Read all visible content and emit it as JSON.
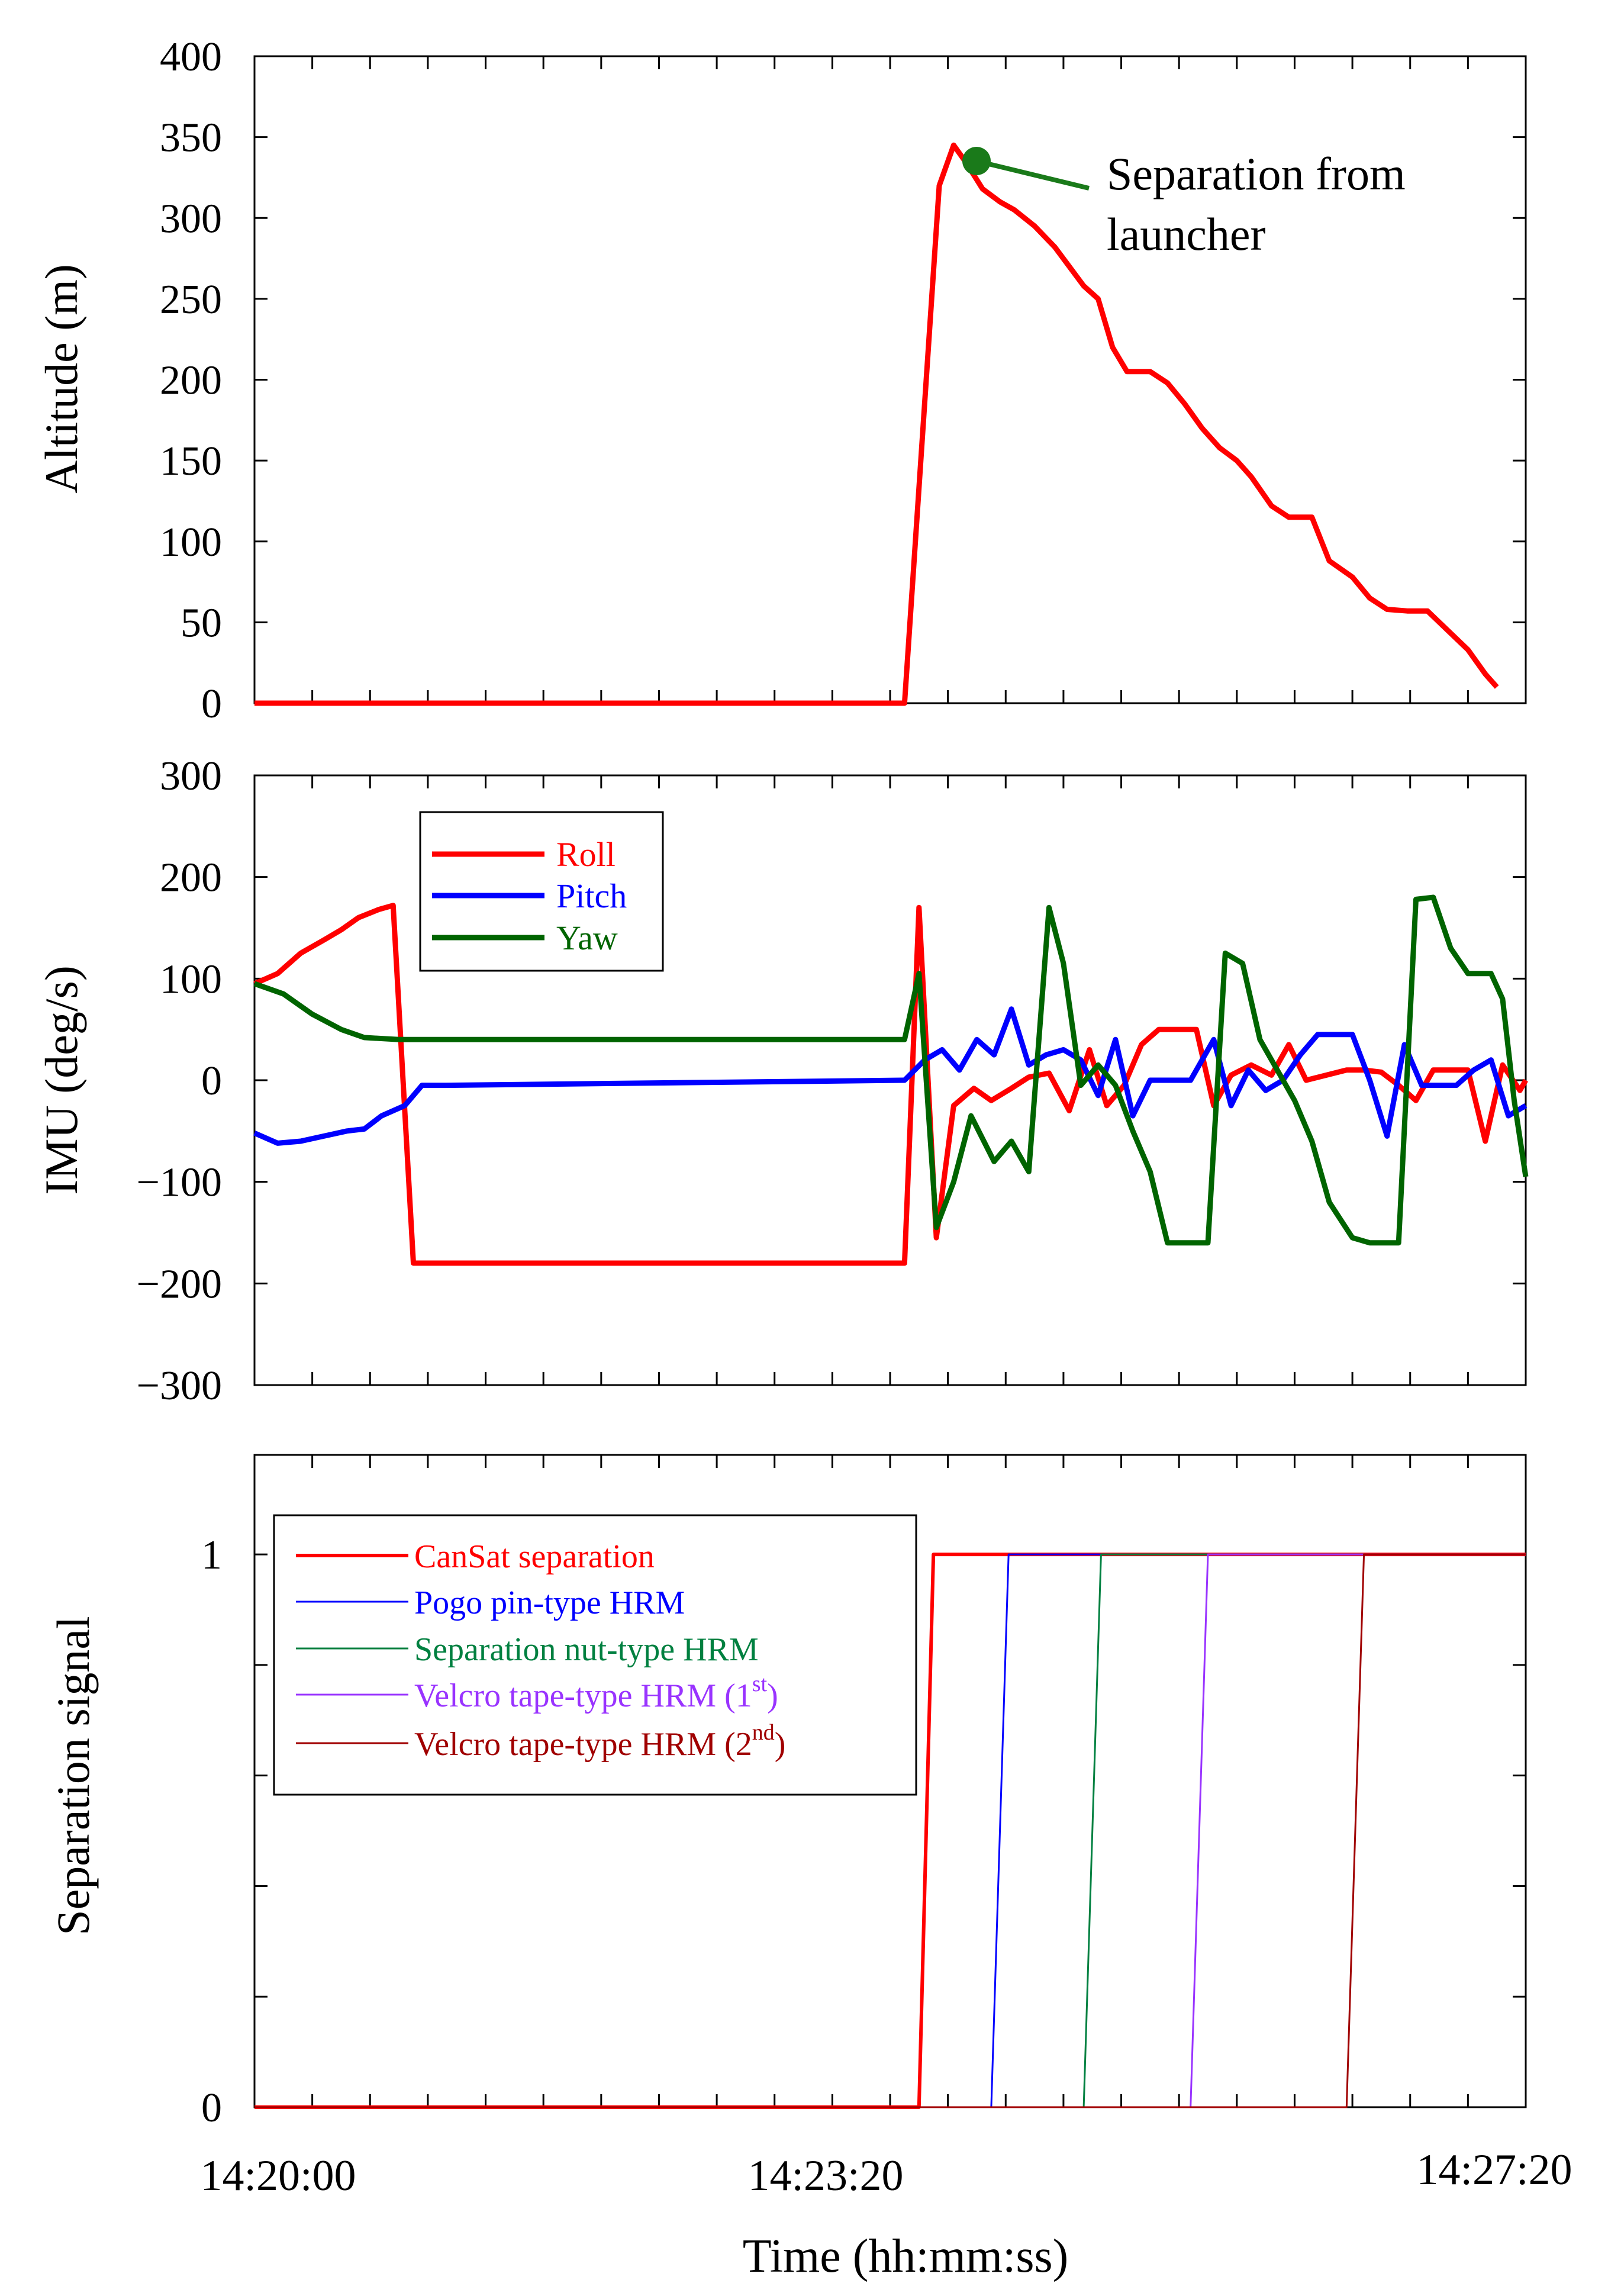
{
  "colors": {
    "roll": "#ff0000",
    "pitch": "#0000ff",
    "yaw": "#006400",
    "cansat": "#ff0000",
    "pogo": "#0000ff",
    "nut": "#008040",
    "velcro1": "#9933ff",
    "velcro2": "#a00000",
    "annotation": "#1a7a1a",
    "axis": "#000000"
  },
  "xaxis": {
    "label": "Time (hh:mm:ss)",
    "ticks": [
      {
        "t": 0,
        "label": "14:20:00"
      },
      {
        "t": 200,
        "label": "14:23:20"
      },
      {
        "t": 440,
        "label": "14:27:20"
      }
    ]
  },
  "chart_data": [
    {
      "id": "altitude",
      "type": "line",
      "ylabel": "Altitude (m)",
      "ylim": [
        0,
        400
      ],
      "yticks": [
        0,
        50,
        100,
        150,
        200,
        250,
        300,
        350,
        400
      ],
      "xlim": [
        0,
        440
      ],
      "annotation": {
        "lines": [
          "Separation from",
          "launcher"
        ],
        "point": {
          "t": 250,
          "value": 335
        }
      },
      "series": [
        {
          "name": "Altitude",
          "color_key": "roll",
          "points": [
            [
              0,
              0
            ],
            [
              225,
              0
            ],
            [
              237,
              320
            ],
            [
              242,
              345
            ],
            [
              246,
              335
            ],
            [
              252,
              318
            ],
            [
              258,
              310
            ],
            [
              263,
              305
            ],
            [
              270,
              295
            ],
            [
              277,
              282
            ],
            [
              282,
              270
            ],
            [
              287,
              258
            ],
            [
              292,
              250
            ],
            [
              297,
              220
            ],
            [
              302,
              205
            ],
            [
              310,
              205
            ],
            [
              316,
              198
            ],
            [
              322,
              185
            ],
            [
              328,
              170
            ],
            [
              334,
              158
            ],
            [
              340,
              150
            ],
            [
              345,
              140
            ],
            [
              352,
              122
            ],
            [
              358,
              115
            ],
            [
              366,
              115
            ],
            [
              372,
              88
            ],
            [
              380,
              78
            ],
            [
              386,
              65
            ],
            [
              392,
              58
            ],
            [
              399,
              57
            ],
            [
              406,
              57
            ],
            [
              413,
              45
            ],
            [
              420,
              33
            ],
            [
              426,
              18
            ],
            [
              430,
              10
            ]
          ]
        }
      ]
    },
    {
      "id": "imu",
      "type": "line",
      "ylabel": "IMU (deg/s)",
      "ylim": [
        -300,
        300
      ],
      "yticks": [
        -300,
        -200,
        -100,
        0,
        100,
        200,
        300
      ],
      "ytick_labels": [
        "−300",
        "−200",
        "−100",
        "0",
        "100",
        "200",
        "300"
      ],
      "xlim": [
        0,
        440
      ],
      "legend": {
        "placement": "top-left",
        "entries": [
          "Roll",
          "Pitch",
          "Yaw"
        ]
      },
      "series": [
        {
          "name": "Roll",
          "color_key": "roll",
          "points": [
            [
              0,
              95
            ],
            [
              8,
              105
            ],
            [
              16,
              125
            ],
            [
              24,
              138
            ],
            [
              30,
              148
            ],
            [
              36,
              160
            ],
            [
              43,
              168
            ],
            [
              48,
              172
            ],
            [
              55,
              -180
            ],
            [
              225,
              -180
            ],
            [
              230,
              170
            ],
            [
              236,
              -155
            ],
            [
              242,
              -25
            ],
            [
              249,
              -8
            ],
            [
              255,
              -20
            ],
            [
              262,
              -8
            ],
            [
              268,
              3
            ],
            [
              275,
              7
            ],
            [
              282,
              -30
            ],
            [
              289,
              30
            ],
            [
              295,
              -25
            ],
            [
              301,
              -5
            ],
            [
              307,
              35
            ],
            [
              313,
              50
            ],
            [
              319,
              50
            ],
            [
              326,
              50
            ],
            [
              332,
              -25
            ],
            [
              338,
              5
            ],
            [
              345,
              15
            ],
            [
              352,
              5
            ],
            [
              358,
              35
            ],
            [
              364,
              0
            ],
            [
              371,
              5
            ],
            [
              378,
              10
            ],
            [
              384,
              10
            ],
            [
              390,
              8
            ],
            [
              396,
              -5
            ],
            [
              402,
              -20
            ],
            [
              408,
              10
            ],
            [
              414,
              10
            ],
            [
              420,
              10
            ],
            [
              426,
              -60
            ],
            [
              432,
              15
            ],
            [
              438,
              -10
            ],
            [
              440,
              0
            ]
          ]
        },
        {
          "name": "Pitch",
          "color_key": "pitch",
          "points": [
            [
              0,
              -52
            ],
            [
              8,
              -62
            ],
            [
              16,
              -60
            ],
            [
              24,
              -55
            ],
            [
              32,
              -50
            ],
            [
              38,
              -48
            ],
            [
              44,
              -35
            ],
            [
              52,
              -25
            ],
            [
              58,
              -5
            ],
            [
              66,
              -5
            ],
            [
              225,
              0
            ],
            [
              232,
              20
            ],
            [
              238,
              30
            ],
            [
              244,
              10
            ],
            [
              250,
              40
            ],
            [
              256,
              25
            ],
            [
              262,
              70
            ],
            [
              268,
              15
            ],
            [
              274,
              25
            ],
            [
              280,
              30
            ],
            [
              286,
              20
            ],
            [
              292,
              -15
            ],
            [
              298,
              40
            ],
            [
              304,
              -35
            ],
            [
              310,
              0
            ],
            [
              318,
              0
            ],
            [
              324,
              0
            ],
            [
              332,
              40
            ],
            [
              338,
              -25
            ],
            [
              344,
              10
            ],
            [
              350,
              -10
            ],
            [
              356,
              0
            ],
            [
              362,
              25
            ],
            [
              368,
              45
            ],
            [
              374,
              45
            ],
            [
              380,
              45
            ],
            [
              386,
              0
            ],
            [
              392,
              -55
            ],
            [
              398,
              35
            ],
            [
              404,
              -5
            ],
            [
              410,
              -5
            ],
            [
              416,
              -5
            ],
            [
              422,
              10
            ],
            [
              428,
              20
            ],
            [
              434,
              -35
            ],
            [
              440,
              -25
            ]
          ]
        },
        {
          "name": "Yaw",
          "color_key": "yaw",
          "points": [
            [
              0,
              95
            ],
            [
              10,
              85
            ],
            [
              20,
              65
            ],
            [
              30,
              50
            ],
            [
              38,
              42
            ],
            [
              50,
              40
            ],
            [
              225,
              40
            ],
            [
              230,
              105
            ],
            [
              236,
              -145
            ],
            [
              242,
              -100
            ],
            [
              248,
              -35
            ],
            [
              256,
              -80
            ],
            [
              262,
              -60
            ],
            [
              268,
              -90
            ],
            [
              275,
              170
            ],
            [
              280,
              115
            ],
            [
              286,
              -5
            ],
            [
              292,
              15
            ],
            [
              298,
              -5
            ],
            [
              304,
              -50
            ],
            [
              310,
              -90
            ],
            [
              316,
              -160
            ],
            [
              330,
              -160
            ],
            [
              336,
              125
            ],
            [
              342,
              115
            ],
            [
              348,
              40
            ],
            [
              354,
              10
            ],
            [
              360,
              -20
            ],
            [
              366,
              -60
            ],
            [
              372,
              -120
            ],
            [
              380,
              -155
            ],
            [
              386,
              -160
            ],
            [
              396,
              -160
            ],
            [
              402,
              178
            ],
            [
              408,
              180
            ],
            [
              414,
              130
            ],
            [
              420,
              105
            ],
            [
              428,
              105
            ],
            [
              432,
              80
            ],
            [
              436,
              -20
            ],
            [
              440,
              -95
            ]
          ]
        }
      ]
    },
    {
      "id": "separation",
      "type": "line",
      "ylabel": "Separation signal",
      "ylim": [
        0,
        1.18
      ],
      "yticks": [
        0,
        0.2,
        0.4,
        0.6,
        0.8,
        1
      ],
      "ytick_labels": [
        "0",
        "",
        "",
        "",
        "",
        "1"
      ],
      "xlim": [
        0,
        440
      ],
      "legend": {
        "placement": "top-left",
        "entries": [
          {
            "text": "CanSat separation",
            "sup": ""
          },
          {
            "text": "Pogo pin-type HRM",
            "sup": ""
          },
          {
            "text": "Separation nut-type HRM",
            "sup": ""
          },
          {
            "text": "Velcro tape-type HRM (1",
            "sup": "st",
            "tail": ")"
          },
          {
            "text": "Velcro tape-type HRM (2",
            "sup": "nd",
            "tail": ")"
          }
        ]
      },
      "series": [
        {
          "name": "CanSat separation",
          "color_key": "cansat",
          "width": 6,
          "points": [
            [
              0,
              0
            ],
            [
              230,
              0
            ],
            [
              235,
              1
            ],
            [
              440,
              1
            ]
          ]
        },
        {
          "name": "Pogo pin-type HRM",
          "color_key": "pogo",
          "width": 3,
          "points": [
            [
              0,
              0
            ],
            [
              255,
              0
            ],
            [
              261,
              1
            ],
            [
              440,
              1
            ]
          ]
        },
        {
          "name": "Separation nut-type HRM",
          "color_key": "nut",
          "width": 3,
          "points": [
            [
              0,
              0
            ],
            [
              287,
              0
            ],
            [
              293,
              1
            ],
            [
              440,
              1
            ]
          ]
        },
        {
          "name": "Velcro tape-type HRM (1st)",
          "color_key": "velcro1",
          "width": 3,
          "points": [
            [
              0,
              0
            ],
            [
              324,
              0
            ],
            [
              330,
              1
            ],
            [
              440,
              1
            ]
          ]
        },
        {
          "name": "Velcro tape-type HRM (2nd)",
          "color_key": "velcro2",
          "width": 3,
          "points": [
            [
              0,
              0
            ],
            [
              378,
              0
            ],
            [
              384,
              1
            ],
            [
              440,
              1
            ]
          ]
        }
      ]
    }
  ]
}
